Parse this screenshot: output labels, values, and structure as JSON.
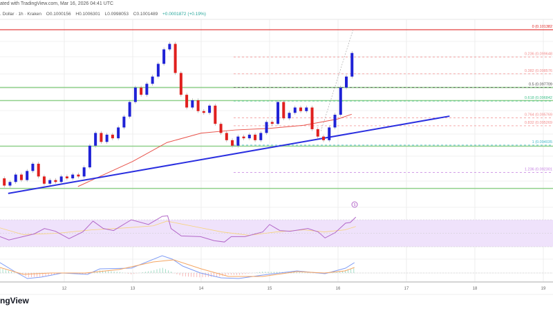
{
  "header": {
    "published": "ated with TradingView.com, Mar 16, 2026 04:41 UTC",
    "symbol": ". Dollar · 1h · Kraken",
    "open": "O0.1000156",
    "high": "H0.1006301",
    "low": "L0.0998053",
    "close": "C0.1001489",
    "change": "+0.0001872 (+0.19%)"
  },
  "logo": "ngView",
  "colors": {
    "up": "#1f22d6",
    "down": "#e0201e",
    "trendline": "#2a2fe0",
    "ema": "#e8524a",
    "support": "#8fd08a",
    "rsi": "#b266c8",
    "rsi_band": "#efe2fb",
    "rsi_signal": "#f7d37a",
    "macd": "#7f9cf5",
    "macd_signal": "#f4a460"
  },
  "icons": {
    "dividend": "dollar-circle-icon"
  },
  "chart_data": {
    "type": "candlestick",
    "x_ticks": [
      "12",
      "13",
      "14",
      "15",
      "16",
      "17",
      "18",
      "19"
    ],
    "candles": {
      "start_day": 11.04,
      "step_days": 0.0833,
      "closes": [
        0.09192,
        0.09146,
        0.09169,
        0.09216,
        0.09181,
        0.09239,
        0.09285,
        0.09204,
        0.09158,
        0.09181,
        0.09169,
        0.09204,
        0.09192,
        0.09216,
        0.09204,
        0.09262,
        0.094,
        0.09481,
        0.09424,
        0.0947,
        0.09447,
        0.09516,
        0.09585,
        0.09678,
        0.0977,
        0.09724,
        0.09794,
        0.0984,
        0.09921,
        0.10013,
        0.10048,
        0.09863,
        0.09724,
        0.09643,
        0.09689,
        0.0962,
        0.09609,
        0.09655,
        0.09539,
        0.09481,
        0.09435,
        0.094,
        0.09458,
        0.09447,
        0.0947,
        0.09435,
        0.09481,
        0.09551,
        0.09539,
        0.09678,
        0.09574,
        0.09609,
        0.09643,
        0.0962,
        0.09643,
        0.09505,
        0.09458,
        0.09435,
        0.09516,
        0.09597,
        0.0977,
        0.0984,
        0.0999
      ]
    },
    "fibonacci": [
      {
        "ratio": "0",
        "label": "0 (0.101382",
        "price": 0.101382,
        "color": "#e0201e"
      },
      {
        "ratio": "0.236",
        "label": "0.236 (0.099648",
        "price": 0.099648,
        "color": "#f28b8b"
      },
      {
        "ratio": "0.382",
        "label": "0.382 (0.098576",
        "price": 0.098576,
        "color": "#f28b8b"
      },
      {
        "ratio": "0.5",
        "label": "0.5 (0.097709",
        "price": 0.097709,
        "color": "#4b4b4b"
      },
      {
        "ratio": "0.618",
        "label": "0.618 (0.096842",
        "price": 0.096842,
        "color": "#3fc08a"
      },
      {
        "ratio": "0.764",
        "label": "0.764 (0.095769",
        "price": 0.095769,
        "color": "#f28b8b"
      },
      {
        "ratio": "0.832",
        "label": "0.832 (0.095269",
        "price": 0.095269,
        "color": "#f28b8b"
      },
      {
        "ratio": "1",
        "label": "1 (0.094035",
        "price": 0.094035,
        "color": "#40b8c8"
      },
      {
        "ratio": "1.236",
        "label": "1.236 (0.092301",
        "price": 0.092301,
        "color": "#c27ce0"
      }
    ],
    "support_levels": [
      0.097709,
      0.09687,
      0.09397,
      0.09128
    ],
    "trendline": [
      [
        11.18,
        0.09096
      ],
      [
        17.63,
        0.09588
      ]
    ],
    "fib_anchor": [
      [
        15.75,
        0.09493
      ],
      [
        16.22,
        0.101382
      ]
    ],
    "ema": [
      [
        12.2,
        0.0914
      ],
      [
        12.6,
        0.0922
      ],
      [
        13.0,
        0.093
      ],
      [
        13.5,
        0.0942
      ],
      [
        14.0,
        0.0948
      ],
      [
        14.5,
        0.095
      ],
      [
        15.0,
        0.0951
      ],
      [
        15.5,
        0.0953
      ],
      [
        16.0,
        0.0957
      ],
      [
        16.2,
        0.096
      ]
    ],
    "rsi": {
      "band": [
        30,
        70
      ],
      "values": [
        [
          11.06,
          45
        ],
        [
          11.19,
          40
        ],
        [
          11.56,
          49
        ],
        [
          11.71,
          57
        ],
        [
          11.87,
          53
        ],
        [
          12.07,
          42
        ],
        [
          12.27,
          52
        ],
        [
          12.42,
          68
        ],
        [
          12.57,
          57
        ],
        [
          12.72,
          54
        ],
        [
          12.98,
          70
        ],
        [
          13.23,
          63
        ],
        [
          13.43,
          75
        ],
        [
          13.51,
          76
        ],
        [
          13.56,
          57
        ],
        [
          13.71,
          46
        ],
        [
          13.99,
          45
        ],
        [
          14.19,
          39
        ],
        [
          14.34,
          37
        ],
        [
          14.44,
          45
        ],
        [
          14.64,
          45
        ],
        [
          14.9,
          52
        ],
        [
          15.0,
          63
        ],
        [
          15.15,
          54
        ],
        [
          15.3,
          53
        ],
        [
          15.56,
          57
        ],
        [
          15.71,
          52
        ],
        [
          15.81,
          43
        ],
        [
          15.96,
          51
        ],
        [
          16.11,
          65
        ],
        [
          16.18,
          66
        ],
        [
          16.26,
          74
        ]
      ],
      "signal": [
        [
          11.06,
          58
        ],
        [
          11.4,
          48
        ],
        [
          11.9,
          50
        ],
        [
          12.4,
          55
        ],
        [
          12.9,
          58
        ],
        [
          13.3,
          61
        ],
        [
          13.5,
          68
        ],
        [
          13.9,
          60
        ],
        [
          14.3,
          52
        ],
        [
          14.7,
          47
        ],
        [
          15.1,
          52
        ],
        [
          15.5,
          55
        ],
        [
          15.8,
          52
        ],
        [
          16.1,
          55
        ],
        [
          16.26,
          60
        ]
      ]
    },
    "macd": {
      "macd": [
        [
          11.06,
          1.5
        ],
        [
          11.26,
          0.3
        ],
        [
          11.46,
          -0.8
        ],
        [
          11.66,
          -0.6
        ],
        [
          11.82,
          -0.3
        ],
        [
          11.97,
          0
        ],
        [
          12.34,
          -0.2
        ],
        [
          12.52,
          0.6
        ],
        [
          12.98,
          0.7
        ],
        [
          13.43,
          2.5
        ],
        [
          13.58,
          2.0
        ],
        [
          13.73,
          1.0
        ],
        [
          13.99,
          0
        ],
        [
          14.29,
          -0.7
        ],
        [
          14.55,
          -0.8
        ],
        [
          14.9,
          -0.3
        ],
        [
          15.4,
          0.3
        ],
        [
          15.81,
          -0.1
        ],
        [
          16.11,
          0.7
        ],
        [
          16.24,
          1.5
        ]
      ],
      "signal": [
        [
          11.06,
          0.8
        ],
        [
          11.4,
          -0.2
        ],
        [
          11.8,
          0
        ],
        [
          12.3,
          0
        ],
        [
          12.8,
          0.5
        ],
        [
          13.3,
          1.6
        ],
        [
          13.6,
          1.9
        ],
        [
          14.0,
          0.6
        ],
        [
          14.4,
          -0.5
        ],
        [
          14.9,
          -0.5
        ],
        [
          15.4,
          0.2
        ],
        [
          15.8,
          0
        ],
        [
          16.1,
          0.3
        ],
        [
          16.24,
          0.8
        ]
      ]
    }
  }
}
